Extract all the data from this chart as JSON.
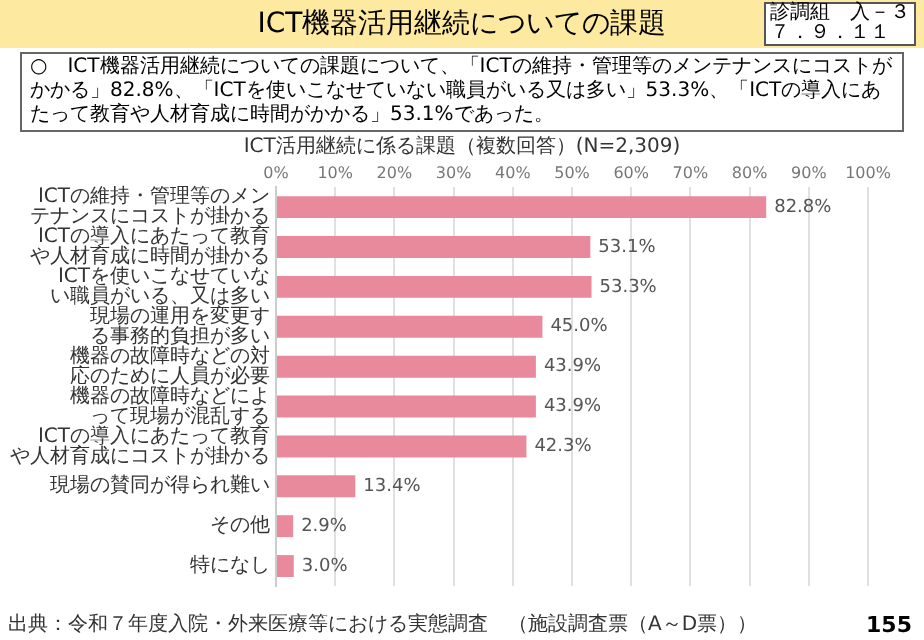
{
  "chart_data": {
    "type": "bar",
    "orientation": "horizontal",
    "title": "ICT機器活用継続についての課題",
    "subtitle": "ICT活用継続に係る課題（複数回答）(N=2,309)",
    "annotations": [
      "○　ICT機器活用継続についての課題について、「ICTの維持・管理等のメンテナンスにコストがかかる」82.8%、「ICTを使いこなせていない職員がいる又は多い」53.3%、「ICTの導入にあたって教育や人材育成に時間がかかる」53.1%であった。",
      "診調組　入－３",
      "７．９．１１",
      "出典：令和７年度入院・外来医療等における実態調査　（施設調査票（A～D票））",
      "155"
    ],
    "categories": [
      "ICTの維持・管理等のメンテナンスにコストが掛かる",
      "ICTの導入にあたって教育や人材育成に時間が掛かる",
      "ICTを使いこなせていない職員がいる、又は多い",
      "現場の運用を変更する事務的負担が多い",
      "機器の故障時などの対応のために人員が必要",
      "機器の故障時などによって現場が混乱する",
      "ICTの導入にあたって教育や人材育成にコストが掛かる",
      "現場の賛同が得られ難い",
      "その他",
      "特になし"
    ],
    "values": [
      82.8,
      53.1,
      53.3,
      45.0,
      43.9,
      43.9,
      42.3,
      13.4,
      2.9,
      3.0
    ],
    "value_labels": [
      "82.8%",
      "53.1%",
      "53.3%",
      "45.0%",
      "43.9%",
      "43.9%",
      "42.3%",
      "13.4%",
      "2.9%",
      "3.0%"
    ],
    "color": "#e8899c",
    "xlim": [
      0,
      100
    ],
    "xticks": [
      {
        "value": 0,
        "label": "0%"
      },
      {
        "value": 10,
        "label": "10%"
      },
      {
        "value": 20,
        "label": "20%"
      },
      {
        "value": 30,
        "label": "30%"
      },
      {
        "value": 40,
        "label": "40%"
      },
      {
        "value": 50,
        "label": "50%"
      },
      {
        "value": 60,
        "label": "60%"
      },
      {
        "value": 70,
        "label": "70%"
      },
      {
        "value": 80,
        "label": "80%"
      },
      {
        "value": 90,
        "label": "90%"
      },
      {
        "value": 100,
        "label": "100%"
      }
    ],
    "grid": "x",
    "legend": false
  }
}
